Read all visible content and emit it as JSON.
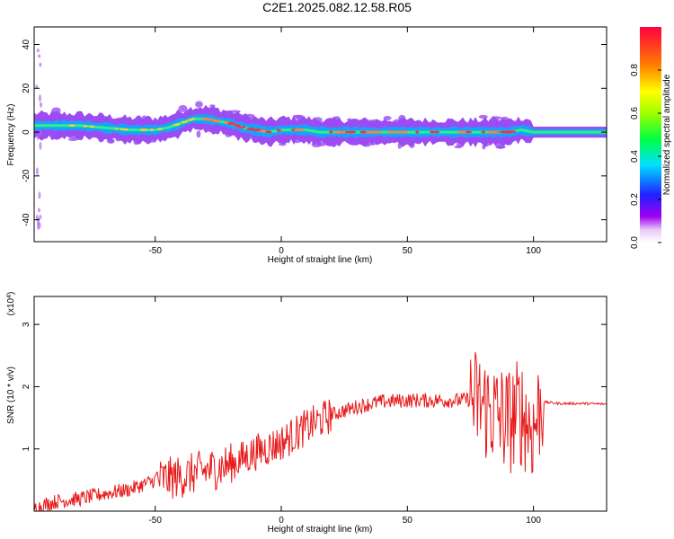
{
  "title": "C2E1.2025.082.12.58.R05",
  "chart_data": [
    {
      "type": "heatmap",
      "xlabel": "Height of straight line (km)",
      "ylabel": "Frequency (Hz)",
      "xlim": [
        -98,
        129
      ],
      "ylim": [
        -50,
        48
      ],
      "xticks": [
        "-50",
        "0",
        "50",
        "100"
      ],
      "yticks": [
        "40",
        "20",
        "0",
        "-20",
        "-40"
      ],
      "colorbar": {
        "label": "Normalized spectral amplitude",
        "range": [
          0.0,
          1.0
        ],
        "ticks": [
          "0.0",
          "0.2",
          "0.4",
          "0.6",
          "0.8"
        ]
      },
      "ridge": {
        "x": [
          -98,
          -90,
          -80,
          -70,
          -60,
          -50,
          -45,
          -40,
          -35,
          -30,
          -25,
          -20,
          -15,
          -10,
          -5,
          0,
          5,
          10,
          15,
          20,
          40,
          60,
          80,
          90,
          95,
          100,
          102,
          129
        ],
        "y": [
          3,
          3,
          3,
          2,
          1,
          1,
          2,
          4,
          6,
          6,
          5,
          4,
          2,
          1,
          0,
          1,
          1,
          1,
          0,
          0,
          0,
          0,
          0,
          0,
          1,
          0,
          0,
          0
        ]
      }
    },
    {
      "type": "line",
      "xlabel": "Height of straight line (km)",
      "ylabel": "SNR (10 * v/v)",
      "y_multiplier": "x10^4",
      "xlim": [
        -98,
        129
      ],
      "ylim": [
        0,
        3.45
      ],
      "xticks": [
        "-50",
        "0",
        "50",
        "100"
      ],
      "yticks": [
        "1",
        "2",
        "3"
      ],
      "series": [
        {
          "color": "#e8191a",
          "x": [
            -98,
            -90,
            -80,
            -70,
            -60,
            -50,
            -40,
            -30,
            -20,
            -10,
            0,
            10,
            20,
            30,
            40,
            50,
            60,
            70,
            75,
            80,
            85,
            90,
            95,
            100,
            103,
            105,
            110,
            120,
            129
          ],
          "y": [
            0.05,
            0.15,
            0.2,
            0.28,
            0.35,
            0.5,
            0.55,
            0.65,
            0.75,
            0.95,
            1.1,
            1.35,
            1.55,
            1.68,
            1.76,
            1.78,
            1.78,
            1.78,
            1.8,
            1.7,
            1.55,
            1.45,
            1.6,
            1.3,
            1.75,
            1.75,
            1.73,
            1.73,
            1.72
          ]
        }
      ]
    }
  ]
}
